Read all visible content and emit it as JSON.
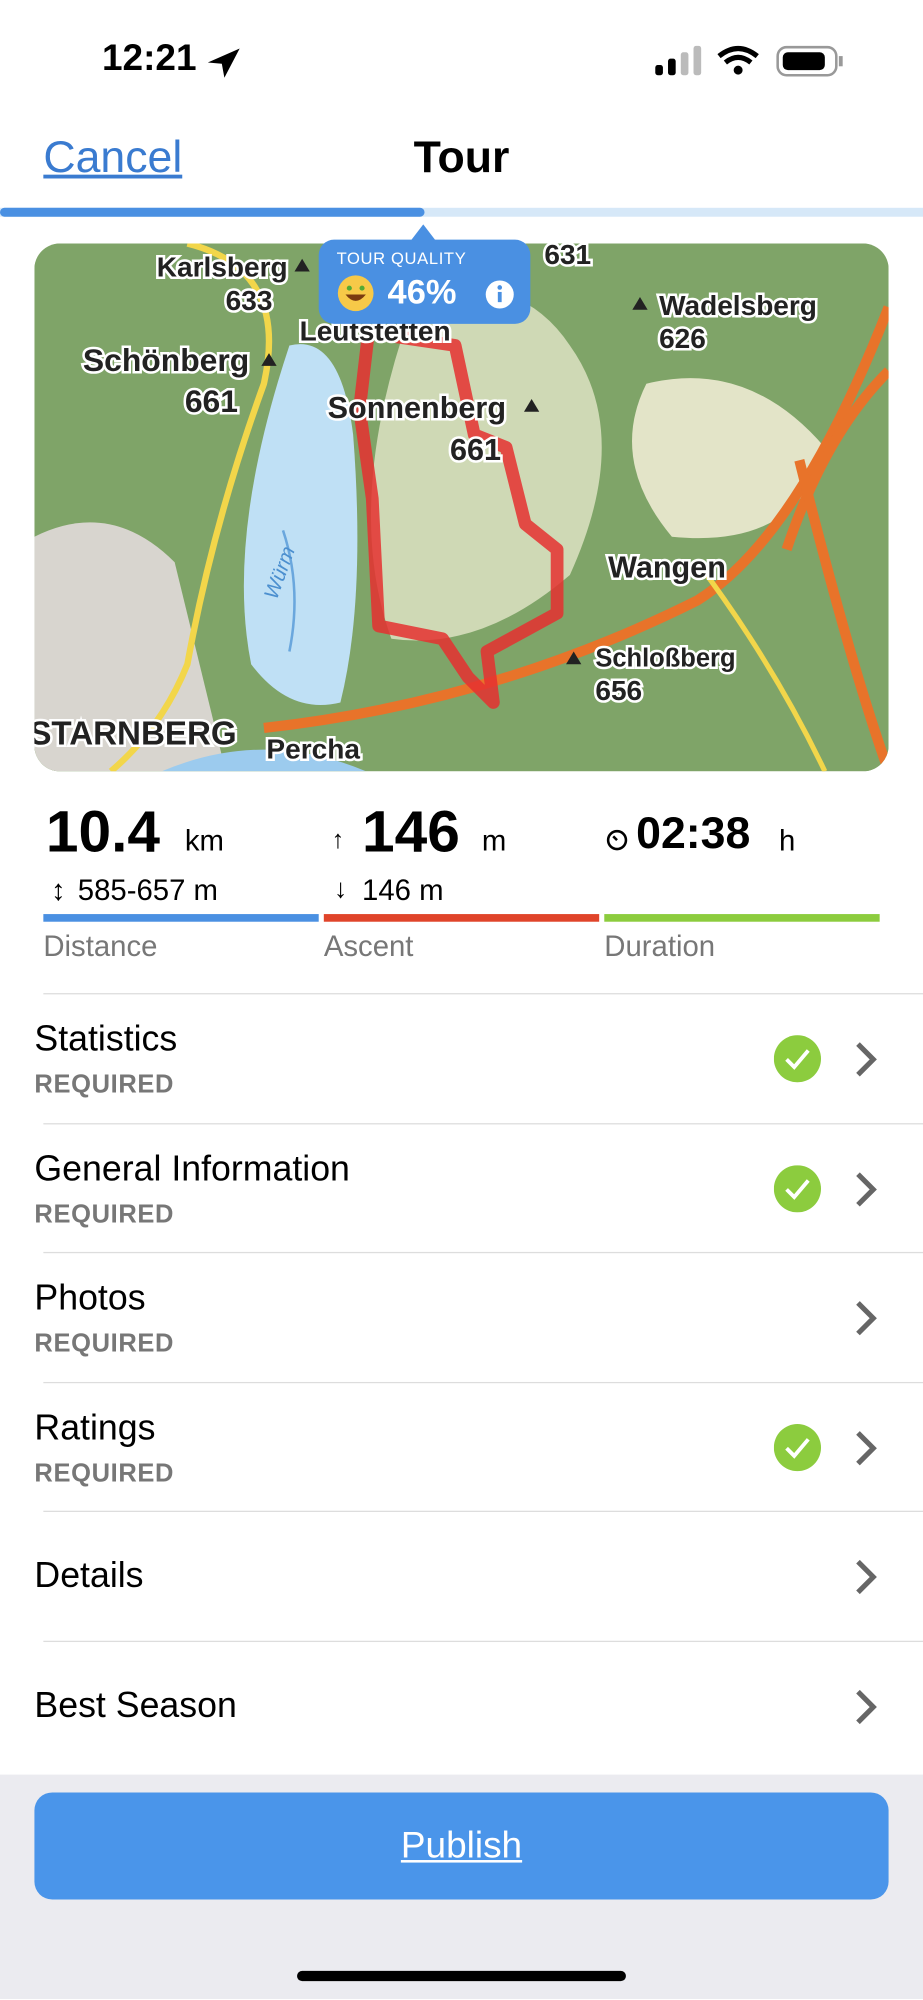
{
  "status_bar": {
    "time": "12:21"
  },
  "nav": {
    "cancel": "Cancel",
    "title": "Tour"
  },
  "map": {
    "quality_label": "TOUR QUALITY",
    "quality_value": "46%",
    "labels": [
      "Karlsberg",
      "633",
      "631",
      "Wadelsberg",
      "626",
      "Schönberg",
      "661",
      "Leutstetten",
      "Sonnenberg",
      "661",
      "Wangen",
      "Schloßberg",
      "656",
      "STARNBERG",
      "Percha",
      "Würm"
    ]
  },
  "stats": {
    "distance": {
      "value": "10.4",
      "unit": "km",
      "sub": "585-657 m",
      "label": "Distance"
    },
    "ascent": {
      "value": "146",
      "unit": "m",
      "sub": "146 m",
      "label": "Ascent"
    },
    "duration": {
      "value": "02:38",
      "unit": "h",
      "label": "Duration"
    }
  },
  "rows": [
    {
      "title": "Statistics",
      "subtitle": "REQUIRED",
      "complete": true
    },
    {
      "title": "General Information",
      "subtitle": "REQUIRED",
      "complete": true
    },
    {
      "title": "Photos",
      "subtitle": "REQUIRED",
      "complete": false
    },
    {
      "title": "Ratings",
      "subtitle": "REQUIRED",
      "complete": true
    },
    {
      "title": "Details",
      "complete": false
    },
    {
      "title": "Best Season",
      "complete": false
    }
  ],
  "publish": "Publish"
}
